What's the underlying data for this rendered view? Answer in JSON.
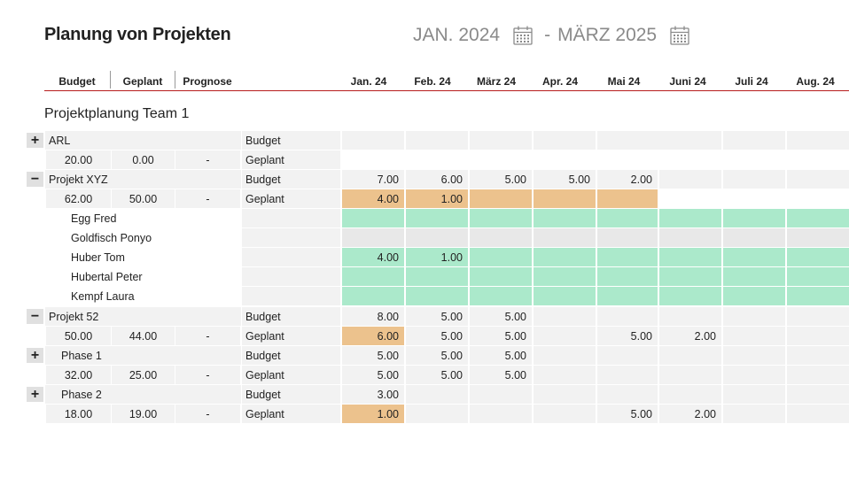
{
  "header": {
    "title": "Planung von Projekten",
    "date_from": "JAN. 2024",
    "date_sep": "-",
    "date_to": "MÄRZ 2025"
  },
  "columns": {
    "budget": "Budget",
    "planned": "Geplant",
    "forecast": "Prognose",
    "months": [
      "Jan. 24",
      "Feb. 24",
      "März 24",
      "Apr. 24",
      "Mai 24",
      "Juni 24",
      "Juli 24",
      "Aug. 24"
    ]
  },
  "team_title": "Projektplanung Team 1",
  "rows": {
    "arl_name": "ARL",
    "arl_budget_label": "Budget",
    "arl_budget": "20.00",
    "arl_planned": "0.00",
    "arl_forecast": "-",
    "arl_planned_label": "Geplant",
    "xyz_name": "Projekt XYZ",
    "xyz_budget_label": "Budget",
    "xyz_b_m1": "7.00",
    "xyz_b_m2": "6.00",
    "xyz_b_m3": "5.00",
    "xyz_b_m4": "5.00",
    "xyz_b_m5": "2.00",
    "xyz_budget": "62.00",
    "xyz_planned": "50.00",
    "xyz_forecast": "-",
    "xyz_planned_label": "Geplant",
    "xyz_p_m1": "4.00",
    "xyz_p_m2": "1.00",
    "person1": "Egg Fred",
    "person2": "Goldfisch Ponyo",
    "person3": "Huber Tom",
    "person3_m1": "4.00",
    "person3_m2": "1.00",
    "person4": "Hubertal Peter",
    "person5": "Kempf Laura",
    "p52_name": "Projekt 52",
    "p52_budget_label": "Budget",
    "p52_b_m1": "8.00",
    "p52_b_m2": "5.00",
    "p52_b_m3": "5.00",
    "p52_budget": "50.00",
    "p52_planned": "44.00",
    "p52_forecast": "-",
    "p52_planned_label": "Geplant",
    "p52_p_m1": "6.00",
    "p52_p_m2": "5.00",
    "p52_p_m3": "5.00",
    "p52_p_m5": "5.00",
    "p52_p_m6": "2.00",
    "ph1_name": "Phase 1",
    "ph1_budget_label": "Budget",
    "ph1_b_m1": "5.00",
    "ph1_b_m2": "5.00",
    "ph1_b_m3": "5.00",
    "ph1_budget": "32.00",
    "ph1_planned": "25.00",
    "ph1_forecast": "-",
    "ph1_planned_label": "Geplant",
    "ph1_p_m1": "5.00",
    "ph1_p_m2": "5.00",
    "ph1_p_m3": "5.00",
    "ph2_name": "Phase 2",
    "ph2_budget_label": "Budget",
    "ph2_b_m1": "3.00",
    "ph2_budget": "18.00",
    "ph2_planned": "19.00",
    "ph2_forecast": "-",
    "ph2_planned_label": "Geplant",
    "ph2_p_m1": "1.00",
    "ph2_p_m5": "5.00",
    "ph2_p_m6": "2.00"
  },
  "toggles": {
    "plus": "+",
    "minus": "−"
  },
  "colors": {
    "accent_line": "#b71c1c",
    "over_plan": "#ecc28d",
    "availability": "#abe9cb"
  }
}
